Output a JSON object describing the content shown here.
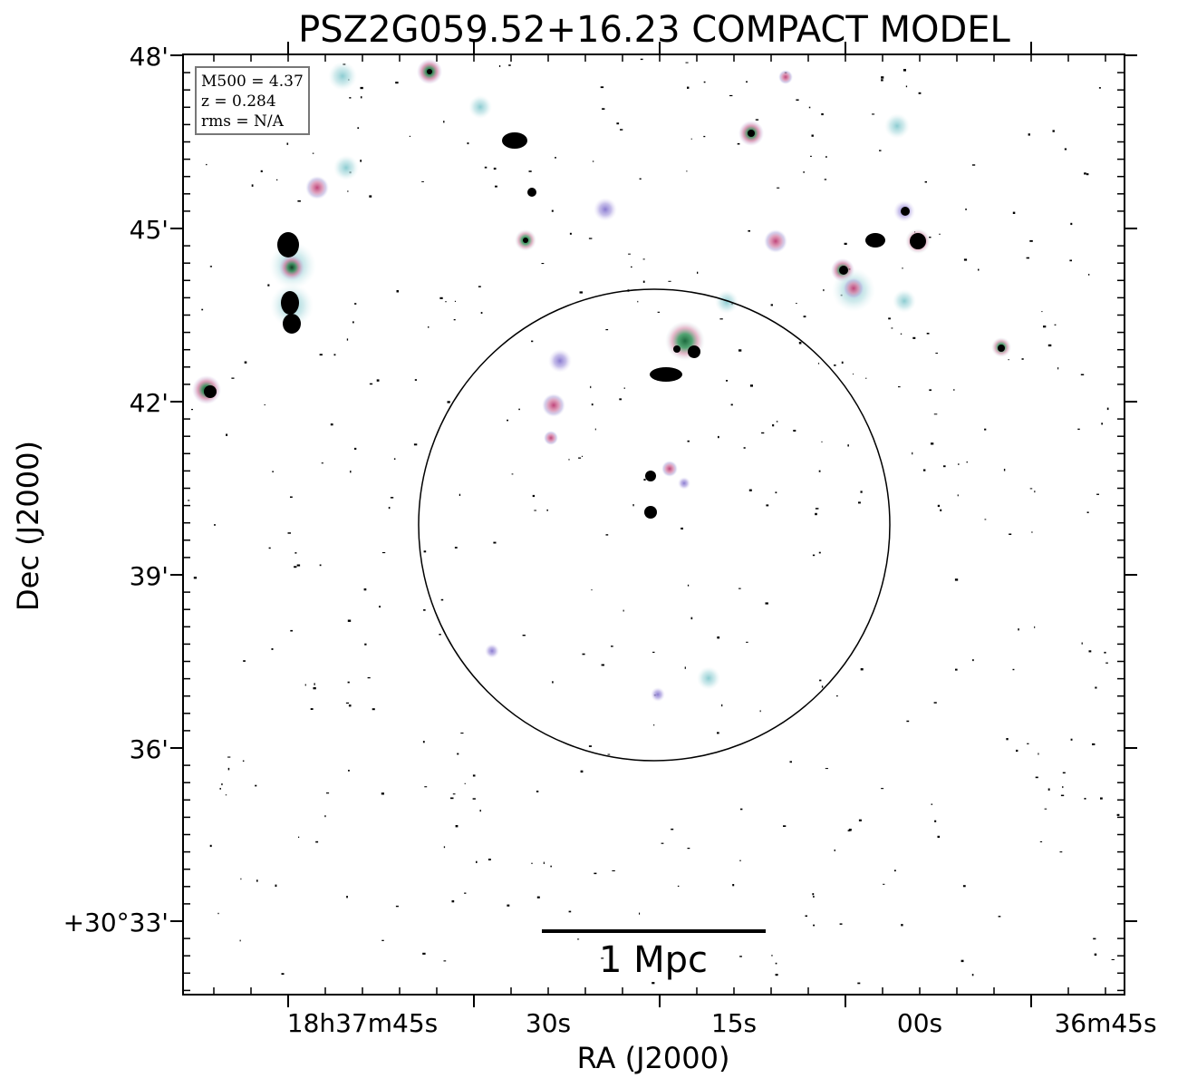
{
  "figure": {
    "title": "PSZ2G059.52+16.23 COMPACT MODEL",
    "xlabel": "RA (J2000)",
    "ylabel": "Dec (J2000)"
  },
  "axes": {
    "x_ticks": [
      "18h37m45s",
      "30s",
      "15s",
      "00s",
      "36m45s"
    ],
    "y_ticks": [
      "48'",
      "45'",
      "42'",
      "39'",
      "36'",
      "+30°33'"
    ]
  },
  "info_box": {
    "line1": "M500 = 4.37",
    "line2": "z = 0.284",
    "line3": "rms = N/A"
  },
  "scale_bar": {
    "label": "1 Mpc"
  },
  "colors": {
    "frame": "#000000",
    "halo_cyan": "#bfe3e6",
    "halo_pink": "#d98fb0",
    "halo_purple": "#a99ad8",
    "halo_green": "#2f8f5a",
    "compact_core": "#000000"
  },
  "sources": [
    {
      "ra": "18h37m41.5s",
      "dec": "+30°47'46\"",
      "type": "pink-green"
    },
    {
      "ra": "18h37m36.1s",
      "dec": "+30°47'06\"",
      "type": "cyan"
    },
    {
      "ra": "18h37m33.7s",
      "dec": "+30°46'35\"",
      "type": "black-double"
    },
    {
      "ra": "18h37m32.6s",
      "dec": "+30°45'36\"",
      "type": "black"
    },
    {
      "ra": "18h37m33.6s",
      "dec": "+30°44'48\"",
      "type": "green"
    },
    {
      "ra": "18h37m25.4s",
      "dec": "+30°45'18\"",
      "type": "purple"
    },
    {
      "ra": "18h37m13.1s",
      "dec": "+30°46'42\"",
      "type": "pink-green"
    },
    {
      "ra": "18h37m10.2s",
      "dec": "+30°47'36\"",
      "type": "pink"
    },
    {
      "ra": "18h37m11.6s",
      "dec": "+30°44'48\"",
      "type": "pink"
    },
    {
      "ra": "18h37m01.3s",
      "dec": "+30°46'48\"",
      "type": "cyan"
    },
    {
      "ra": "18h37m03.7s",
      "dec": "+30°44'48\"",
      "type": "black-double"
    },
    {
      "ra": "18h37m00.2s",
      "dec": "+30°44'48\"",
      "type": "black"
    },
    {
      "ra": "18h37m01.5s",
      "dec": "+30°45'18\"",
      "type": "purple"
    },
    {
      "ra": "18h37m05.2s",
      "dec": "+30°44'15\"",
      "type": "pink-green"
    },
    {
      "ra": "18h37m04.1s",
      "dec": "+30°43'56\"",
      "type": "pink"
    },
    {
      "ra": "18h37m01.3s",
      "dec": "+30°43'44\"",
      "type": "cyan"
    },
    {
      "ra": "18h36m54.0s",
      "dec": "+30°42'54\"",
      "type": "green"
    },
    {
      "ra": "18h37m16.2s",
      "dec": "+30°43'42\"",
      "type": "cyan"
    },
    {
      "ra": "18h37m20.1s",
      "dec": "+30°42'54\"",
      "type": "green"
    },
    {
      "ra": "18h37m18.6s",
      "dec": "+30°42'48\"",
      "type": "black"
    },
    {
      "ra": "18h37m20.8s",
      "dec": "+30°42'27\"",
      "type": "black-double"
    },
    {
      "ra": "18h37m28.3s",
      "dec": "+30°42'42\"",
      "type": "purple"
    },
    {
      "ra": "18h37m28.6s",
      "dec": "+30°41'54\"",
      "type": "pink"
    },
    {
      "ra": "18h37m29.0s",
      "dec": "+30°41'22\"",
      "type": "pink"
    },
    {
      "ra": "18h37m21.6s",
      "dec": "+30°40'42\"",
      "type": "black"
    },
    {
      "ra": "18h37m19.9s",
      "dec": "+30°40'48\"",
      "type": "pink"
    },
    {
      "ra": "18h37m18.6s",
      "dec": "+30°40'33\"",
      "type": "purple"
    },
    {
      "ra": "18h37m21.6s",
      "dec": "+30°40'03\"",
      "type": "black"
    },
    {
      "ra": "18h37m33.7s",
      "dec": "+30°37'39\"",
      "type": "purple"
    },
    {
      "ra": "18h37m16.6s",
      "dec": "+30°37'09\"",
      "type": "cyan"
    },
    {
      "ra": "18h37m21.1s",
      "dec": "+30°36'54\"",
      "type": "purple"
    },
    {
      "ra": "18h37m49.0s",
      "dec": "+30°45'42\"",
      "type": "pink"
    },
    {
      "ra": "18h37m46.5s",
      "dec": "+30°46'03\"",
      "type": "cyan"
    },
    {
      "ra": "18h37m51.0s",
      "dec": "+30°44'45\"",
      "type": "black"
    },
    {
      "ra": "18h37m50.5s",
      "dec": "+30°44'21\"",
      "type": "pink-green"
    },
    {
      "ra": "18h37m50.6s",
      "dec": "+30°43'48\"",
      "type": "black"
    },
    {
      "ra": "18h37m50.5s",
      "dec": "+30°43'24\"",
      "type": "black"
    },
    {
      "ra": "18h37m46.9s",
      "dec": "+30°47'42\"",
      "type": "cyan"
    },
    {
      "ra": "18h37m59.0s",
      "dec": "+30°42'10\"",
      "type": "pink-green"
    }
  ]
}
